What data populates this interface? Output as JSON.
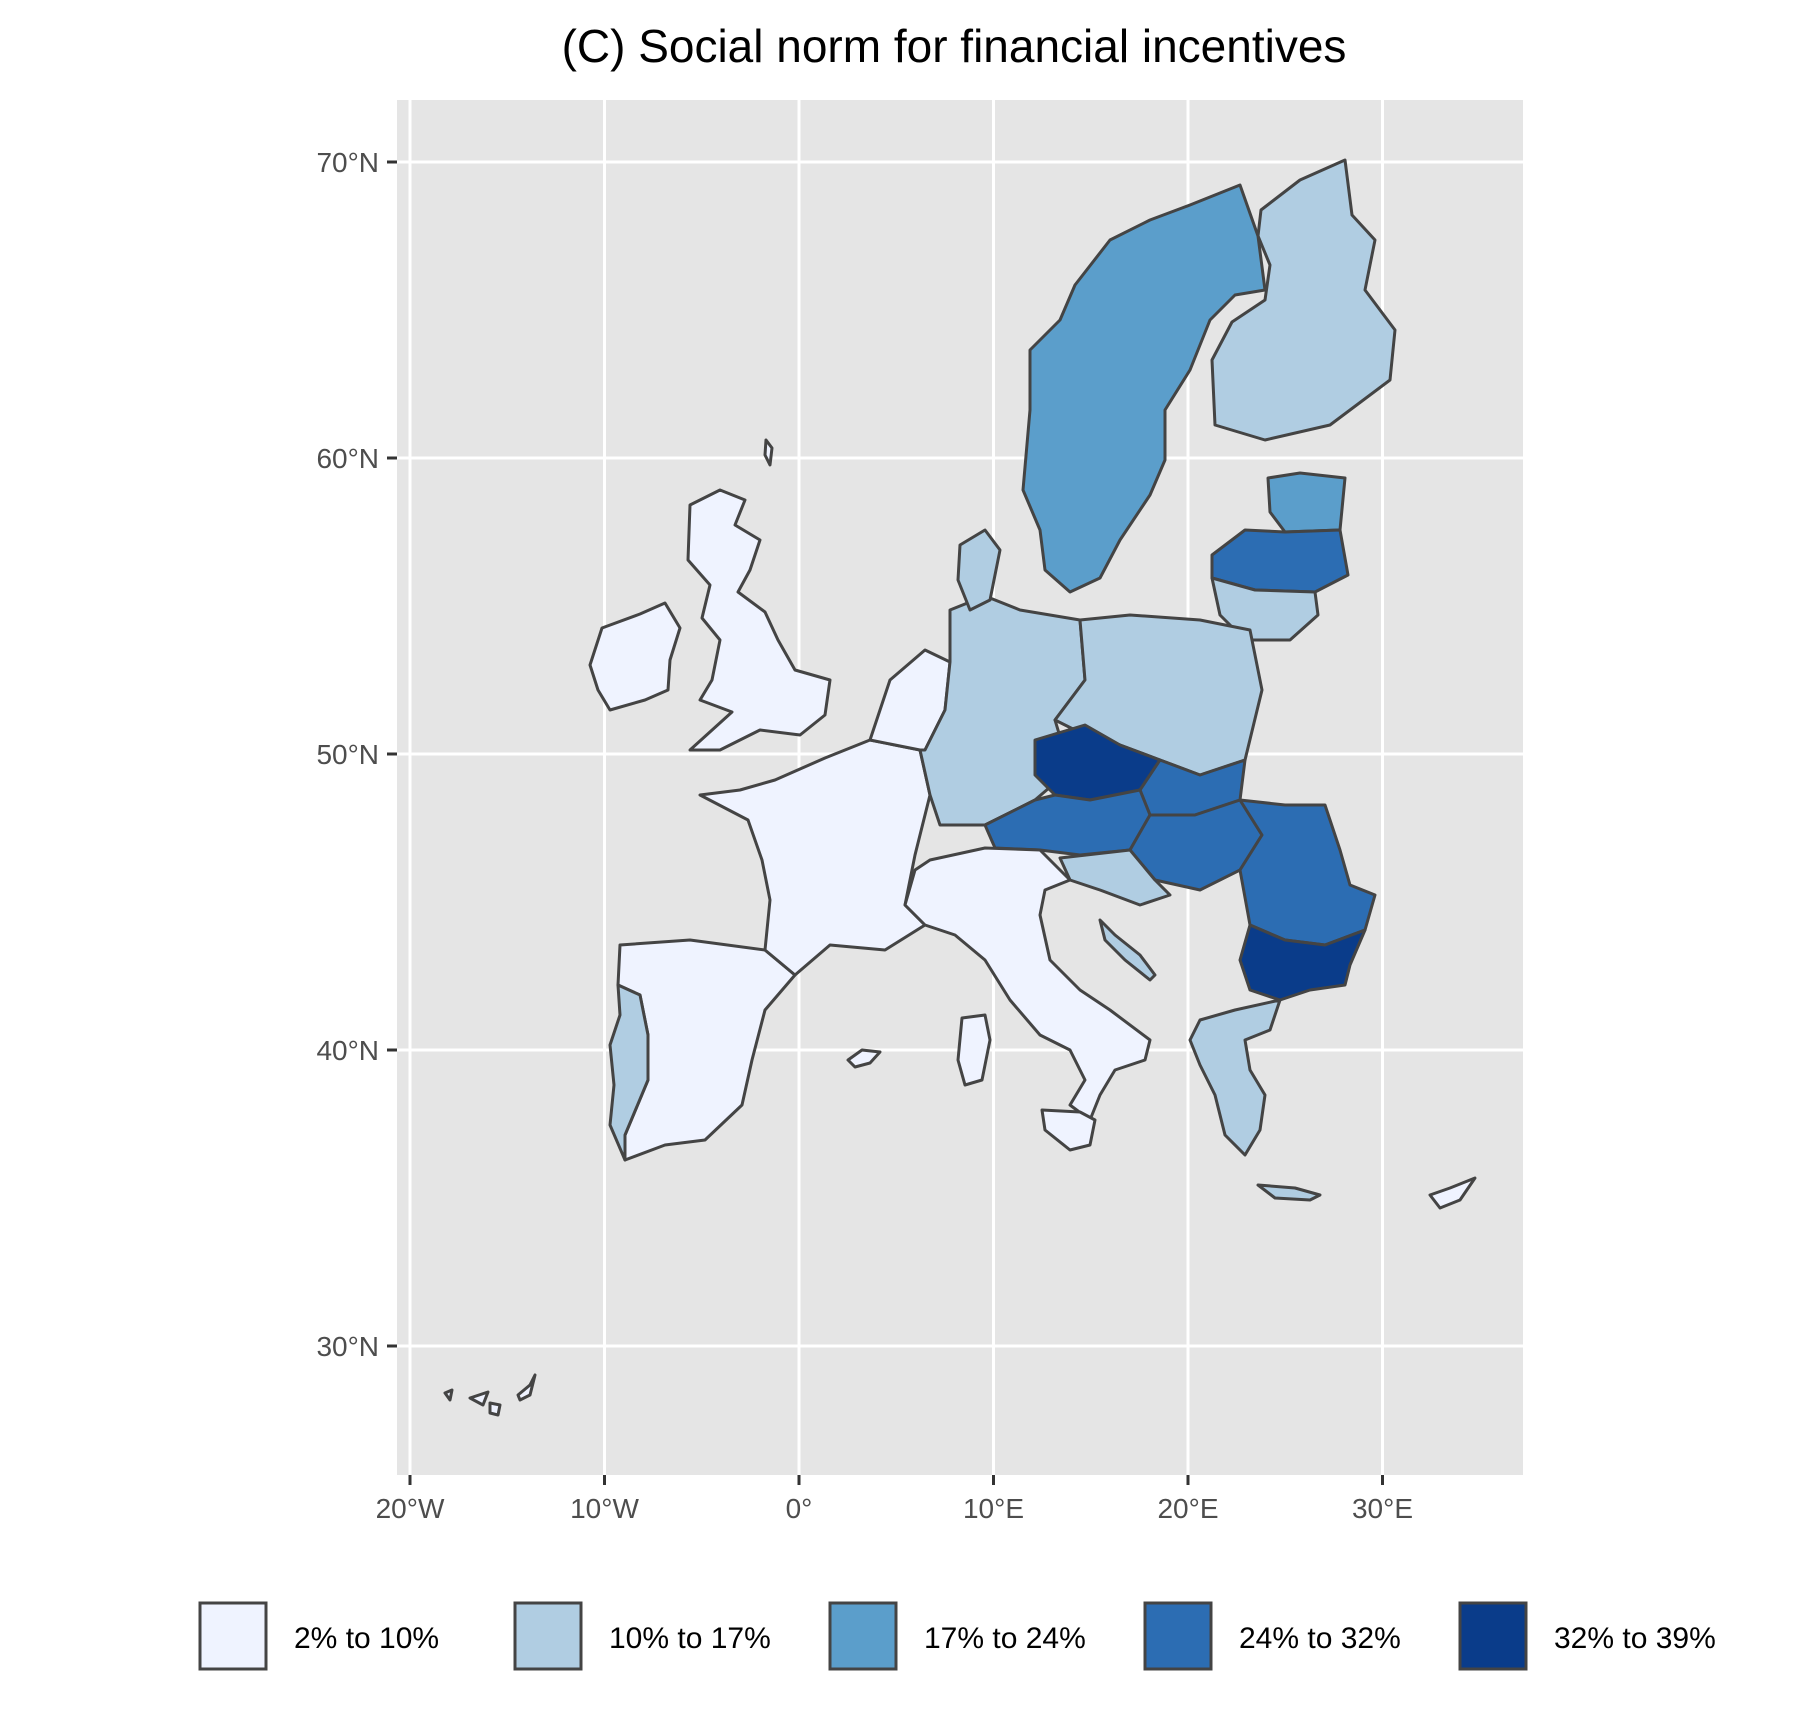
{
  "map": {
    "title": "(C) Social norm for financial incentives",
    "x_axis": {
      "ticks": [
        {
          "value": -20,
          "label": "20°W"
        },
        {
          "value": -10,
          "label": "10°W"
        },
        {
          "value": 0,
          "label": "0°"
        },
        {
          "value": 10,
          "label": "10°E"
        },
        {
          "value": 20,
          "label": "20°E"
        },
        {
          "value": 30,
          "label": "30°E"
        }
      ]
    },
    "y_axis": {
      "ticks": [
        {
          "value": 70,
          "label": "70°N"
        },
        {
          "value": 60,
          "label": "60°N"
        },
        {
          "value": 50,
          "label": "50°N"
        },
        {
          "value": 40,
          "label": "40°N"
        },
        {
          "value": 30,
          "label": "30°N"
        }
      ]
    },
    "legend": {
      "position": "bottom",
      "items": [
        {
          "label": "2% to 10%",
          "color": "#eff3ff"
        },
        {
          "label": "10% to 17%",
          "color": "#b0cde2"
        },
        {
          "label": "17% to 24%",
          "color": "#5b9ecb"
        },
        {
          "label": "24% to 32%",
          "color": "#2c6db3"
        },
        {
          "label": "32% to 39%",
          "color": "#0a3c8a"
        }
      ]
    },
    "panel_background": "#e5e5e5",
    "grid_color": "#ffffff",
    "border_color": "#444444"
  }
}
